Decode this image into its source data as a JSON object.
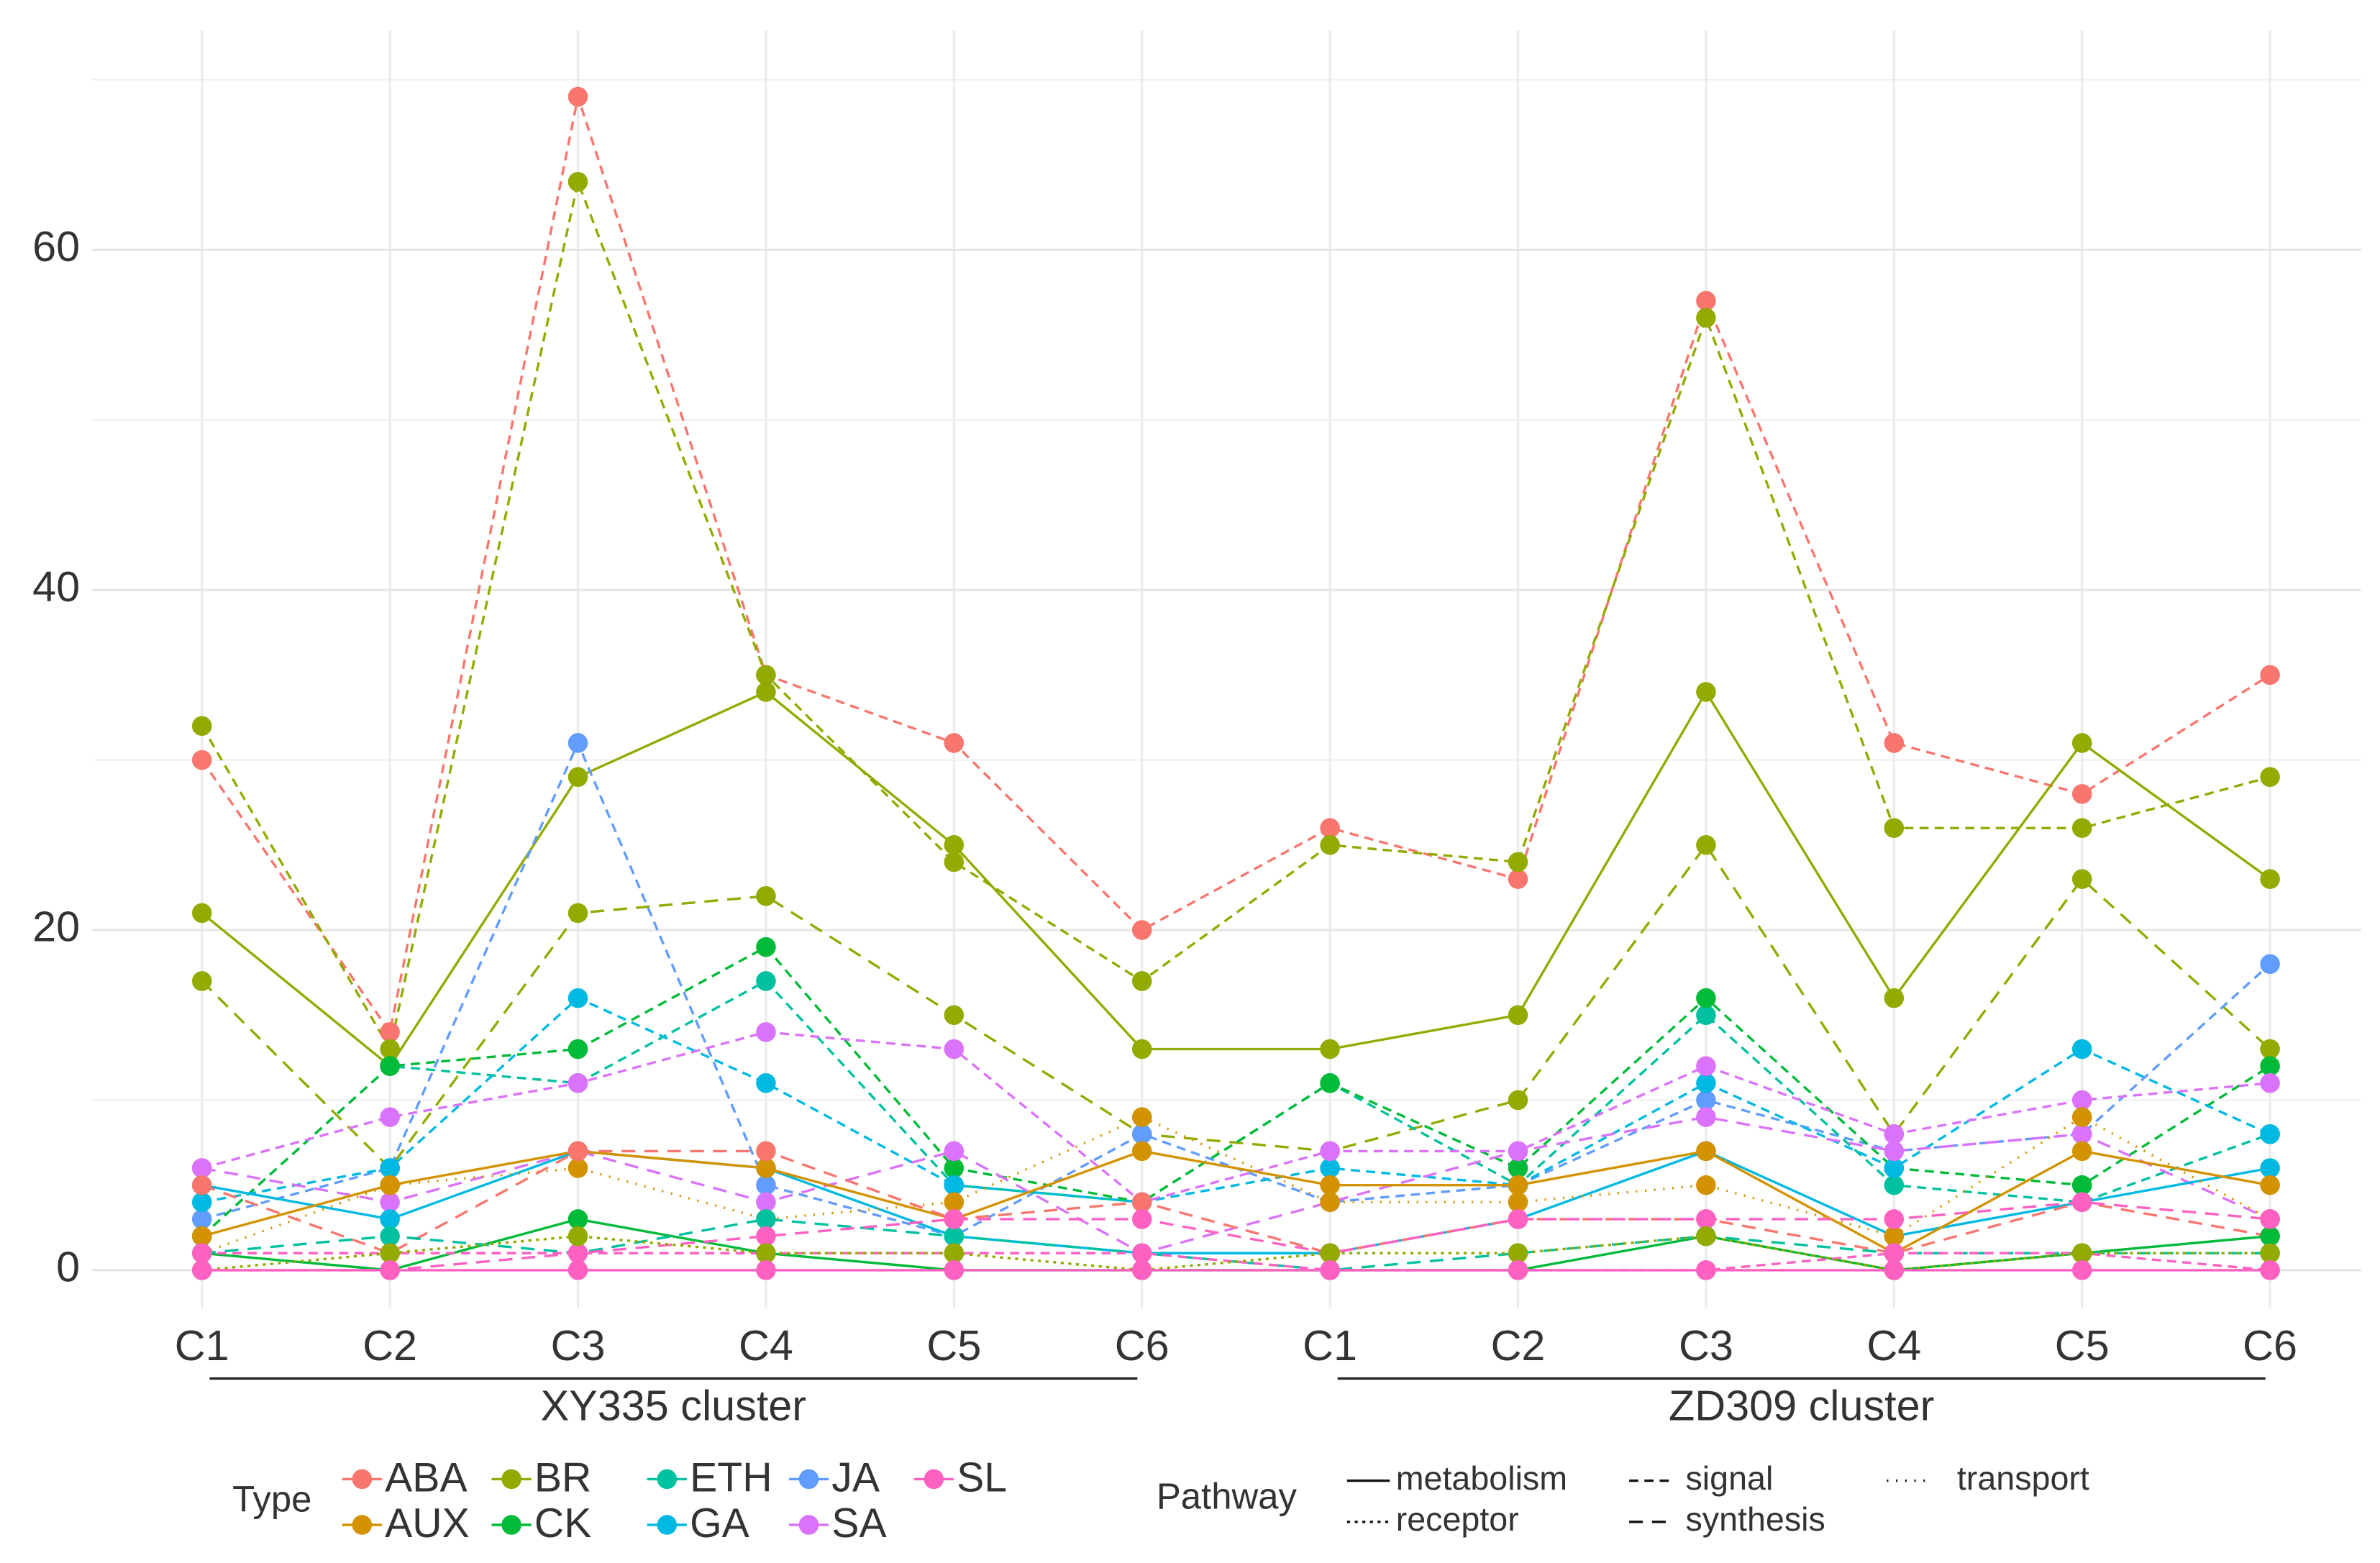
{
  "chart_data": {
    "type": "line",
    "categories": [
      "C1",
      "C2",
      "C3",
      "C4",
      "C5",
      "C6",
      "C1",
      "C2",
      "C3",
      "C4",
      "C5",
      "C6"
    ],
    "groups": [
      {
        "label": "XY335 cluster",
        "from": 0,
        "to": 5
      },
      {
        "label": "ZD309 cluster",
        "from": 6,
        "to": 11
      }
    ],
    "ylim": [
      -2.2,
      72
    ],
    "yticks": [
      0,
      20,
      40,
      60
    ],
    "y_minor_grid": [
      10,
      30,
      50,
      70
    ],
    "grid": true,
    "type_legend_title": "Type",
    "pathway_legend_title": "Pathway",
    "types": [
      {
        "name": "ABA",
        "color": "#F8766D"
      },
      {
        "name": "AUX",
        "color": "#D39200"
      },
      {
        "name": "BR",
        "color": "#93AA00"
      },
      {
        "name": "CK",
        "color": "#00BA38"
      },
      {
        "name": "ETH",
        "color": "#00C19F"
      },
      {
        "name": "GA",
        "color": "#00B9E3"
      },
      {
        "name": "JA",
        "color": "#619CFF"
      },
      {
        "name": "SA",
        "color": "#DB72FB"
      },
      {
        "name": "SL",
        "color": "#FF61C3"
      }
    ],
    "pathways": [
      {
        "name": "metabolism",
        "dash": "none"
      },
      {
        "name": "receptor",
        "dash": "2,3"
      },
      {
        "name": "signal",
        "dash": "6,4"
      },
      {
        "name": "synthesis",
        "dash": "9,6"
      },
      {
        "name": "transport",
        "dash": "1,5"
      }
    ],
    "series": [
      {
        "type": "ABA",
        "pathway": "signal",
        "values": [
          30,
          14,
          69,
          35,
          31,
          20,
          26,
          23,
          57,
          31,
          28,
          35
        ]
      },
      {
        "type": "BR",
        "pathway": "signal",
        "values": [
          32,
          13,
          64,
          35,
          24,
          17,
          25,
          24,
          56,
          26,
          26,
          29
        ]
      },
      {
        "type": "BR",
        "pathway": "metabolism",
        "values": [
          21,
          12,
          29,
          34,
          25,
          13,
          13,
          15,
          34,
          16,
          31,
          23
        ]
      },
      {
        "type": "BR",
        "pathway": "synthesis",
        "values": [
          17,
          6,
          21,
          22,
          15,
          8,
          7,
          10,
          25,
          8,
          23,
          13
        ]
      },
      {
        "type": "JA",
        "pathway": "signal",
        "values": [
          3,
          6,
          31,
          5,
          2,
          8,
          4,
          5,
          10,
          7,
          8,
          18
        ]
      },
      {
        "type": "ETH",
        "pathway": "signal",
        "values": [
          2,
          12,
          11,
          17,
          5,
          4,
          11,
          5,
          15,
          5,
          4,
          8
        ]
      },
      {
        "type": "CK",
        "pathway": "signal",
        "values": [
          2,
          12,
          13,
          19,
          6,
          4,
          11,
          6,
          16,
          6,
          5,
          12
        ]
      },
      {
        "type": "GA",
        "pathway": "signal",
        "values": [
          4,
          6,
          16,
          11,
          5,
          4,
          6,
          5,
          11,
          6,
          13,
          8
        ]
      },
      {
        "type": "SA",
        "pathway": "signal",
        "values": [
          6,
          9,
          11,
          14,
          13,
          4,
          7,
          7,
          12,
          8,
          10,
          11
        ]
      },
      {
        "type": "SA",
        "pathway": "synthesis",
        "values": [
          6,
          4,
          7,
          4,
          7,
          1,
          4,
          7,
          9,
          7,
          8,
          3
        ]
      },
      {
        "type": "GA",
        "pathway": "metabolism",
        "values": [
          5,
          3,
          7,
          6,
          2,
          1,
          1,
          3,
          7,
          2,
          4,
          6
        ]
      },
      {
        "type": "AUX",
        "pathway": "metabolism",
        "values": [
          2,
          5,
          7,
          6,
          3,
          7,
          5,
          5,
          7,
          1,
          7,
          5
        ]
      },
      {
        "type": "AUX",
        "pathway": "transport",
        "values": [
          1,
          5,
          6,
          3,
          4,
          9,
          4,
          4,
          5,
          2,
          9,
          3
        ]
      },
      {
        "type": "ABA",
        "pathway": "synthesis",
        "values": [
          5,
          1,
          7,
          7,
          3,
          4,
          1,
          3,
          3,
          1,
          4,
          2
        ]
      },
      {
        "type": "CK",
        "pathway": "metabolism",
        "values": [
          1,
          0,
          3,
          1,
          0,
          0,
          0,
          0,
          2,
          0,
          1,
          2
        ]
      },
      {
        "type": "ETH",
        "pathway": "synthesis",
        "values": [
          1,
          2,
          1,
          3,
          2,
          1,
          0,
          1,
          2,
          1,
          1,
          1
        ]
      },
      {
        "type": "SL",
        "pathway": "synthesis",
        "values": [
          0,
          0,
          1,
          2,
          3,
          3,
          1,
          3,
          3,
          3,
          4,
          3
        ]
      },
      {
        "type": "SL",
        "pathway": "signal",
        "values": [
          1,
          1,
          1,
          1,
          1,
          1,
          0,
          0,
          0,
          1,
          1,
          0
        ]
      },
      {
        "type": "BR",
        "pathway": "receptor",
        "values": [
          0,
          1,
          2,
          1,
          1,
          0,
          1,
          1,
          2,
          0,
          1,
          1
        ]
      },
      {
        "type": "SL",
        "pathway": "metabolism",
        "values": [
          0,
          0,
          0,
          0,
          0,
          0,
          0,
          0,
          0,
          0,
          0,
          0
        ]
      }
    ]
  }
}
